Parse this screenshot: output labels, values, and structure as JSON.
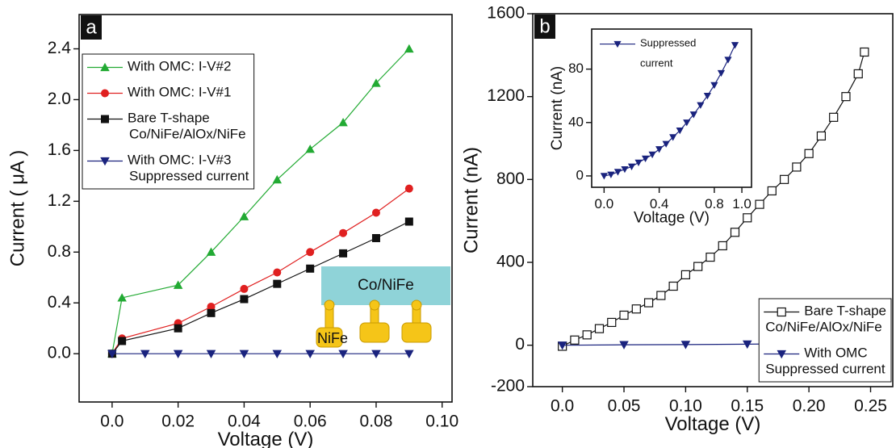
{
  "chart_data": [
    {
      "type": "line",
      "panel_label": "a",
      "xlabel": "Voltage (V)",
      "ylabel": "Current ( μA )",
      "xlim": [
        -0.01,
        0.103
      ],
      "ylim": [
        -0.38,
        2.67
      ],
      "xticks": [
        {
          "value": 0,
          "label": "0.0"
        },
        0.02,
        0.04,
        0.06,
        0.08,
        {
          "value": 0.1,
          "label": "0.10"
        }
      ],
      "yticks": [
        {
          "value": 0,
          "label": "0.0"
        },
        0.4,
        0.8,
        1.2,
        1.6,
        {
          "value": 2,
          "label": "2.0"
        },
        2.4
      ],
      "legend": "upper left",
      "annotations": [
        "Co/NiFe",
        "NiFe"
      ],
      "series": [
        {
          "name": "With OMC: I-V#2",
          "color": "#22aa33",
          "marker": "triangle-up",
          "x": [
            0,
            0.003,
            0.02,
            0.03,
            0.04,
            0.05,
            0.06,
            0.07,
            0.08,
            0.09
          ],
          "values": [
            0,
            0.44,
            0.54,
            0.8,
            1.08,
            1.37,
            1.61,
            1.82,
            2.13,
            2.4
          ]
        },
        {
          "name": "With OMC: I-V#1",
          "color": "#e02020",
          "marker": "circle",
          "x": [
            0,
            0.003,
            0.02,
            0.03,
            0.04,
            0.05,
            0.06,
            0.07,
            0.08,
            0.09
          ],
          "values": [
            0,
            0.12,
            0.24,
            0.37,
            0.51,
            0.64,
            0.8,
            0.95,
            1.11,
            1.3
          ]
        },
        {
          "name": "Bare T-shape\nCo/NiFe/AlOx/NiFe",
          "color": "#111111",
          "marker": "square",
          "x": [
            0,
            0.003,
            0.02,
            0.03,
            0.04,
            0.05,
            0.06,
            0.07,
            0.08,
            0.09
          ],
          "values": [
            0,
            0.1,
            0.2,
            0.32,
            0.43,
            0.55,
            0.67,
            0.79,
            0.91,
            1.04
          ]
        },
        {
          "name": "With OMC: I-V#3\nSuppressed current",
          "color": "#1a237e",
          "marker": "triangle-down",
          "x": [
            0,
            0.01,
            0.02,
            0.03,
            0.04,
            0.05,
            0.06,
            0.07,
            0.08,
            0.09
          ],
          "values": [
            0,
            0,
            0,
            0,
            0,
            0,
            0,
            0,
            0,
            0
          ]
        }
      ]
    },
    {
      "type": "line",
      "panel_label": "b",
      "xlabel": "Voltage (V)",
      "ylabel": "Current (nA)",
      "xlim": [
        -0.024,
        0.268
      ],
      "ylim": [
        -200,
        1600
      ],
      "xticks": [
        {
          "value": 0,
          "label": "0.0"
        },
        0.05,
        {
          "value": 0.1,
          "label": "0.10"
        },
        0.15,
        {
          "value": 0.2,
          "label": "0.20"
        },
        0.25
      ],
      "yticks": [
        -200,
        0,
        400,
        800,
        1200,
        1600
      ],
      "legend": "lower right",
      "series": [
        {
          "name": "Bare T-shape\nCo/NiFe/AlOx/NiFe",
          "color": "#111111",
          "marker": "square-open",
          "x": [
            0,
            0.01,
            0.02,
            0.03,
            0.04,
            0.05,
            0.06,
            0.07,
            0.08,
            0.09,
            0.1,
            0.11,
            0.12,
            0.13,
            0.14,
            0.15,
            0.16,
            0.17,
            0.18,
            0.19,
            0.2,
            0.21,
            0.22,
            0.23,
            0.24,
            0.245
          ],
          "values": [
            -5,
            25,
            50,
            80,
            110,
            145,
            175,
            205,
            240,
            285,
            340,
            380,
            425,
            480,
            545,
            615,
            680,
            745,
            800,
            860,
            925,
            1010,
            1100,
            1200,
            1310,
            1415
          ]
        },
        {
          "name": "With OMC\nSuppressed current",
          "color": "#1a237e",
          "marker": "triangle-down",
          "x": [
            0,
            0.05,
            0.1,
            0.15,
            0.2,
            0.25
          ],
          "values": [
            0,
            2,
            3,
            5,
            8,
            12
          ]
        }
      ]
    },
    {
      "type": "line",
      "xlabel": "Voltage (V)",
      "ylabel": "Current (nA)",
      "xlim": [
        -0.09,
        1.07
      ],
      "ylim": [
        -8.5,
        110
      ],
      "xticks": [
        {
          "value": 0,
          "label": "0.0"
        },
        0.4,
        0.8,
        {
          "value": 1,
          "label": "1.0"
        }
      ],
      "yticks": [
        0,
        40,
        80
      ],
      "legend": "upper left",
      "series": [
        {
          "name": "Suppressed\ncurrent",
          "color": "#1a237e",
          "marker": "triangle-down",
          "x": [
            0,
            0.05,
            0.1,
            0.15,
            0.2,
            0.25,
            0.3,
            0.35,
            0.4,
            0.45,
            0.5,
            0.55,
            0.6,
            0.65,
            0.7,
            0.75,
            0.8,
            0.85,
            0.9,
            0.95
          ],
          "values": [
            0,
            1,
            3,
            5,
            7,
            10,
            13,
            16,
            20,
            24,
            29,
            34,
            40,
            46,
            53,
            60,
            68,
            77,
            87,
            98
          ]
        }
      ]
    }
  ]
}
